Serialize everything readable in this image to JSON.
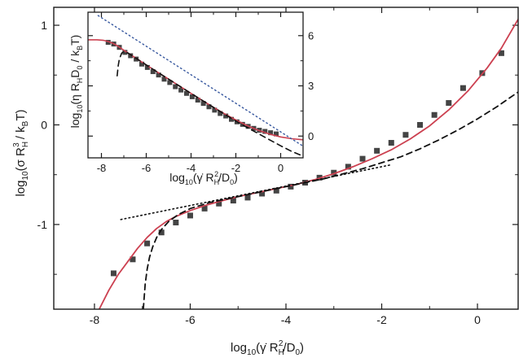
{
  "chart_data": [
    {
      "type": "scatter",
      "x_axis": {
        "label_main": "log",
        "label_sub": "10",
        "label_rest": "(γ̇ R",
        "label_sub2": "H",
        "label_sup2": "2",
        "label_tail": "/D",
        "label_sub3": "0",
        "label_end": ")",
        "range": [
          -8.85,
          0.85
        ],
        "ticks": [
          -8,
          -6,
          -4,
          -2,
          0
        ],
        "tick_labels": [
          "-8",
          "-6",
          "-4",
          "-2",
          "0"
        ]
      },
      "y_axis": {
        "label_main": "log",
        "label_sub": "10",
        "label_rest": "(σ R",
        "label_sub2": "H",
        "label_sup2": "3",
        "label_tail": " / k",
        "label_sub3": "B",
        "label_end": "T)",
        "range": [
          -1.85,
          1.18
        ],
        "ticks": [
          -1,
          0,
          1
        ],
        "tick_labels": [
          "-1",
          "0",
          "1"
        ]
      },
      "series": [
        {
          "kind": "markers",
          "color": "#444444",
          "x": [
            -7.6,
            -7.2,
            -6.9,
            -6.6,
            -6.3,
            -6.0,
            -5.7,
            -5.4,
            -5.1,
            -4.8,
            -4.5,
            -4.2,
            -3.9,
            -3.6,
            -3.3,
            -3.0,
            -2.7,
            -2.4,
            -2.1,
            -1.8,
            -1.5,
            -1.2,
            -0.9,
            -0.6,
            -0.3,
            0.1,
            0.5
          ],
          "y": [
            -1.49,
            -1.35,
            -1.19,
            -1.08,
            -0.98,
            -0.91,
            -0.84,
            -0.79,
            -0.76,
            -0.73,
            -0.69,
            -0.66,
            -0.62,
            -0.58,
            -0.53,
            -0.48,
            -0.42,
            -0.34,
            -0.26,
            -0.18,
            -0.1,
            0.0,
            0.1,
            0.22,
            0.37,
            0.52,
            0.72
          ]
        },
        {
          "kind": "solid",
          "color": "#cc4050",
          "x": [
            -7.9,
            -7.7,
            -7.5,
            -7.3,
            -7.1,
            -6.9,
            -6.7,
            -6.5,
            -6.3,
            -6.0,
            -5.7,
            -5.4,
            -5.0,
            -4.6,
            -4.2,
            -3.8,
            -3.4,
            -3.0,
            -2.6,
            -2.2,
            -1.8,
            -1.4,
            -1.0,
            -0.6,
            -0.2,
            0.2,
            0.5,
            0.85
          ],
          "y": [
            -1.85,
            -1.66,
            -1.5,
            -1.37,
            -1.24,
            -1.13,
            -1.04,
            -0.97,
            -0.92,
            -0.86,
            -0.81,
            -0.77,
            -0.72,
            -0.68,
            -0.64,
            -0.6,
            -0.55,
            -0.49,
            -0.42,
            -0.34,
            -0.25,
            -0.14,
            -0.01,
            0.15,
            0.34,
            0.57,
            0.77,
            1.06
          ]
        },
        {
          "kind": "dashed",
          "color": "#111111",
          "x": [
            -6.98,
            -6.94,
            -6.9,
            -6.85,
            -6.78,
            -6.7,
            -6.6,
            -6.45,
            -6.25,
            -6.0,
            -5.6,
            -5.2,
            -4.8,
            -4.4,
            -4.0,
            -3.6,
            -3.2,
            -2.8,
            -2.4,
            -2.0,
            -1.6,
            -1.2,
            -0.8,
            -0.4,
            0.0,
            0.4,
            0.85
          ],
          "y": [
            -1.85,
            -1.6,
            -1.45,
            -1.33,
            -1.22,
            -1.13,
            -1.05,
            -0.97,
            -0.9,
            -0.84,
            -0.78,
            -0.74,
            -0.7,
            -0.66,
            -0.62,
            -0.58,
            -0.54,
            -0.49,
            -0.44,
            -0.38,
            -0.32,
            -0.24,
            -0.15,
            -0.05,
            0.06,
            0.18,
            0.33
          ]
        },
        {
          "kind": "dotted",
          "color": "#111111",
          "x": [
            -7.45,
            -1.8
          ],
          "y": [
            -0.95,
            -0.4
          ]
        }
      ]
    },
    {
      "type": "scatter",
      "x_axis": {
        "label_main": "log",
        "label_sub": "10",
        "label_rest": "(γ̇ R",
        "label_sub2": "H",
        "label_sup2": "2",
        "label_tail": "/D",
        "label_sub3": "0",
        "label_end": ")",
        "range": [
          -8.6,
          1.0
        ],
        "ticks": [
          -8,
          -6,
          -4,
          -2,
          0
        ],
        "tick_labels": [
          "-8",
          "-6",
          "-4",
          "-2",
          "0"
        ]
      },
      "y_axis": {
        "label_main": "log",
        "label_sub": "10",
        "label_rest": "(η R",
        "label_sub2": "H",
        "label_sup2": "",
        "label_tail": "D",
        "label_sub3": "0",
        "label_end": " / k",
        "label_sub4": "B",
        "label_end2": "T)",
        "range": [
          -1.3,
          7.4
        ],
        "ticks": [
          0,
          3,
          6
        ],
        "tick_labels": [
          "0",
          "3",
          "6"
        ]
      },
      "series": [
        {
          "kind": "markers",
          "color": "#444444",
          "x": [
            -7.7,
            -7.45,
            -7.2,
            -6.95,
            -6.7,
            -6.45,
            -6.2,
            -5.95,
            -5.7,
            -5.45,
            -5.2,
            -4.95,
            -4.7,
            -4.45,
            -4.2,
            -3.95,
            -3.7,
            -3.45,
            -3.2,
            -2.95,
            -2.7,
            -2.45,
            -2.2,
            -1.95,
            -1.7,
            -1.45,
            -1.2,
            -0.95,
            -0.7,
            -0.45,
            -0.2
          ],
          "y": [
            5.6,
            5.5,
            5.3,
            5.0,
            4.8,
            4.6,
            4.3,
            4.1,
            3.85,
            3.65,
            3.4,
            3.2,
            2.95,
            2.75,
            2.55,
            2.35,
            2.15,
            1.95,
            1.75,
            1.55,
            1.35,
            1.2,
            1.0,
            0.85,
            0.7,
            0.58,
            0.46,
            0.35,
            0.28,
            0.2,
            0.13
          ]
        },
        {
          "kind": "solid",
          "color": "#cc4050",
          "x": [
            -8.6,
            -8.2,
            -7.9,
            -7.7,
            -7.5,
            -7.3,
            -7.1,
            -6.8,
            -6.4,
            -6.0,
            -5.5,
            -5.0,
            -4.5,
            -4.0,
            -3.5,
            -3.0,
            -2.5,
            -2.0,
            -1.5,
            -1.0,
            -0.5,
            0.0,
            0.5,
            1.0
          ],
          "y": [
            5.75,
            5.75,
            5.72,
            5.65,
            5.55,
            5.4,
            5.22,
            4.95,
            4.6,
            4.25,
            3.82,
            3.4,
            2.97,
            2.55,
            2.13,
            1.72,
            1.33,
            0.96,
            0.63,
            0.35,
            0.12,
            -0.05,
            -0.16,
            -0.22
          ]
        },
        {
          "kind": "dashed",
          "color": "#111111",
          "x": [
            -7.3,
            -7.25,
            -7.2,
            -7.1,
            -7.0,
            -6.8,
            -6.4,
            -6.0,
            -5.5,
            -5.0,
            -4.5,
            -4.0,
            -3.5,
            -3.0,
            -2.5,
            -2.0,
            -1.5,
            -1.0,
            -0.5,
            0.0,
            0.5,
            1.0
          ],
          "y": [
            3.6,
            4.2,
            4.6,
            4.95,
            5.05,
            4.95,
            4.6,
            4.25,
            3.82,
            3.4,
            2.97,
            2.55,
            2.13,
            1.72,
            1.3,
            0.9,
            0.52,
            0.15,
            -0.22,
            -0.58,
            -0.92,
            -1.2
          ]
        },
        {
          "kind": "dotted",
          "color": "#3a5aa0",
          "x": [
            -8.15,
            1.0
          ],
          "y": [
            7.2,
            -0.6
          ]
        }
      ]
    }
  ]
}
